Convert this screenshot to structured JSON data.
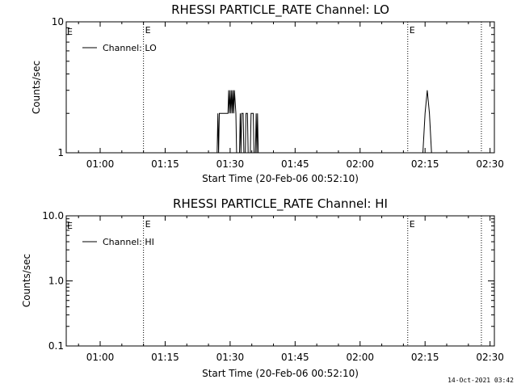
{
  "chart_data": [
    {
      "type": "line",
      "title": "RHESSI PARTICLE_RATE Channel: LO",
      "xlabel": "Start Time (20-Feb-06 00:52:10)",
      "ylabel": "Counts/sec",
      "y_scale": "log",
      "ylim": [
        1,
        10
      ],
      "xlim": [
        "00:52:10",
        "02:31:00"
      ],
      "xtick_labels": [
        "01:00",
        "01:15",
        "01:30",
        "01:45",
        "02:00",
        "02:15",
        "02:30"
      ],
      "ytick_labels": [
        "1",
        "10"
      ],
      "event_markers": [
        {
          "time": "01:10",
          "label": "E"
        },
        {
          "time": "02:11",
          "label": "E"
        },
        {
          "time": "02:28",
          "label": ""
        }
      ],
      "series": [
        {
          "name": "Channel: LO",
          "points": [
            [
              "01:27:00",
              1
            ],
            [
              "01:27:10",
              2
            ],
            [
              "01:27:20",
              1
            ],
            [
              "01:27:30",
              2
            ],
            [
              "01:29:30",
              2
            ],
            [
              "01:29:40",
              3
            ],
            [
              "01:29:50",
              2
            ],
            [
              "01:30:00",
              3
            ],
            [
              "01:30:10",
              2
            ],
            [
              "01:30:20",
              3
            ],
            [
              "01:30:30",
              2
            ],
            [
              "01:30:40",
              3
            ],
            [
              "01:30:50",
              2
            ],
            [
              "01:31:00",
              3
            ],
            [
              "01:31:20",
              2
            ],
            [
              "01:31:30",
              1
            ],
            [
              "01:32:10",
              1
            ],
            [
              "01:32:20",
              2
            ],
            [
              "01:32:30",
              1
            ],
            [
              "01:32:40",
              2
            ],
            [
              "01:33:00",
              2
            ],
            [
              "01:33:10",
              1
            ],
            [
              "01:33:30",
              1
            ],
            [
              "01:33:40",
              2
            ],
            [
              "01:34:00",
              2
            ],
            [
              "01:34:10",
              1
            ],
            [
              "01:34:40",
              1
            ],
            [
              "01:34:50",
              2
            ],
            [
              "01:35:20",
              2
            ],
            [
              "01:35:30",
              1
            ],
            [
              "01:35:50",
              1
            ],
            [
              "01:36:00",
              2
            ],
            [
              "01:36:10",
              1
            ],
            [
              "01:36:20",
              2
            ],
            [
              "01:36:30",
              1
            ],
            [
              "02:14:30",
              1
            ],
            [
              "02:15:00",
              2
            ],
            [
              "02:15:30",
              3
            ],
            [
              "02:16:00",
              2
            ],
            [
              "02:16:30",
              1
            ]
          ]
        }
      ],
      "legend": "top-left"
    },
    {
      "type": "line",
      "title": "RHESSI PARTICLE_RATE Channel: HI",
      "xlabel": "Start Time (20-Feb-06 00:52:10)",
      "ylabel": "Counts/sec",
      "y_scale": "log",
      "ylim": [
        0.1,
        10
      ],
      "xlim": [
        "00:52:10",
        "02:31:00"
      ],
      "xtick_labels": [
        "01:00",
        "01:15",
        "01:30",
        "01:45",
        "02:00",
        "02:15",
        "02:30"
      ],
      "ytick_labels": [
        "0.1",
        "1.0",
        "10.0"
      ],
      "event_markers": [
        {
          "time": "01:10",
          "label": "E"
        },
        {
          "time": "02:11",
          "label": "E"
        },
        {
          "time": "02:28",
          "label": ""
        }
      ],
      "series": [
        {
          "name": "Channel: HI",
          "points": []
        }
      ],
      "legend": "top-left"
    }
  ],
  "footer_timestamp": "14-Oct-2021 03:42"
}
